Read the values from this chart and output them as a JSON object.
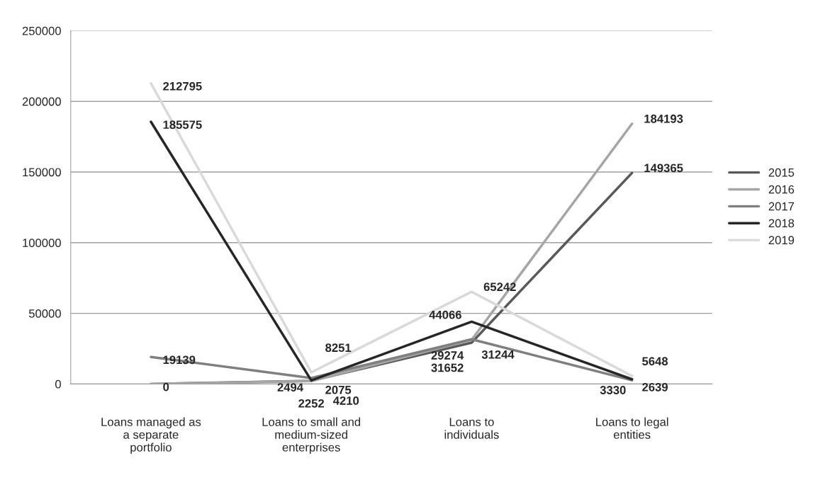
{
  "chart_data": {
    "type": "line",
    "categories": [
      "Loans managed as\na separate\nportfolio",
      "Loans to small and\nmedium-sized\nenterprises",
      "Loans to\nindividuals",
      "Loans to legal\nentities"
    ],
    "series": [
      {
        "name": "2015",
        "color": "#595959",
        "values": [
          0,
          2252,
          29274,
          149365
        ],
        "value_labels": [
          "0",
          "2252",
          "29274",
          "149365"
        ]
      },
      {
        "name": "2016",
        "color": "#a5a5a5",
        "values": [
          0,
          2075,
          31244,
          184193
        ],
        "value_labels": [
          null,
          "2075",
          "31244",
          "184193"
        ]
      },
      {
        "name": "2017",
        "color": "#7f7f7f",
        "values": [
          19139,
          4210,
          31652,
          2639
        ],
        "value_labels": [
          "19139",
          "4210",
          "31652",
          "2639"
        ]
      },
      {
        "name": "2018",
        "color": "#262626",
        "values": [
          185575,
          2494,
          44066,
          3330
        ],
        "value_labels": [
          "185575",
          "2494",
          "44066",
          "3330"
        ]
      },
      {
        "name": "2019",
        "color": "#d9d9d9",
        "values": [
          212795,
          8251,
          65242,
          5648
        ],
        "value_labels": [
          "212795",
          "8251",
          "65242",
          "5648"
        ]
      }
    ],
    "ylim": [
      0,
      250000
    ],
    "yticks": [
      0,
      50000,
      100000,
      150000,
      200000,
      250000
    ],
    "grid": "y",
    "legend": "right",
    "marker": "none",
    "line_style": "solid"
  }
}
